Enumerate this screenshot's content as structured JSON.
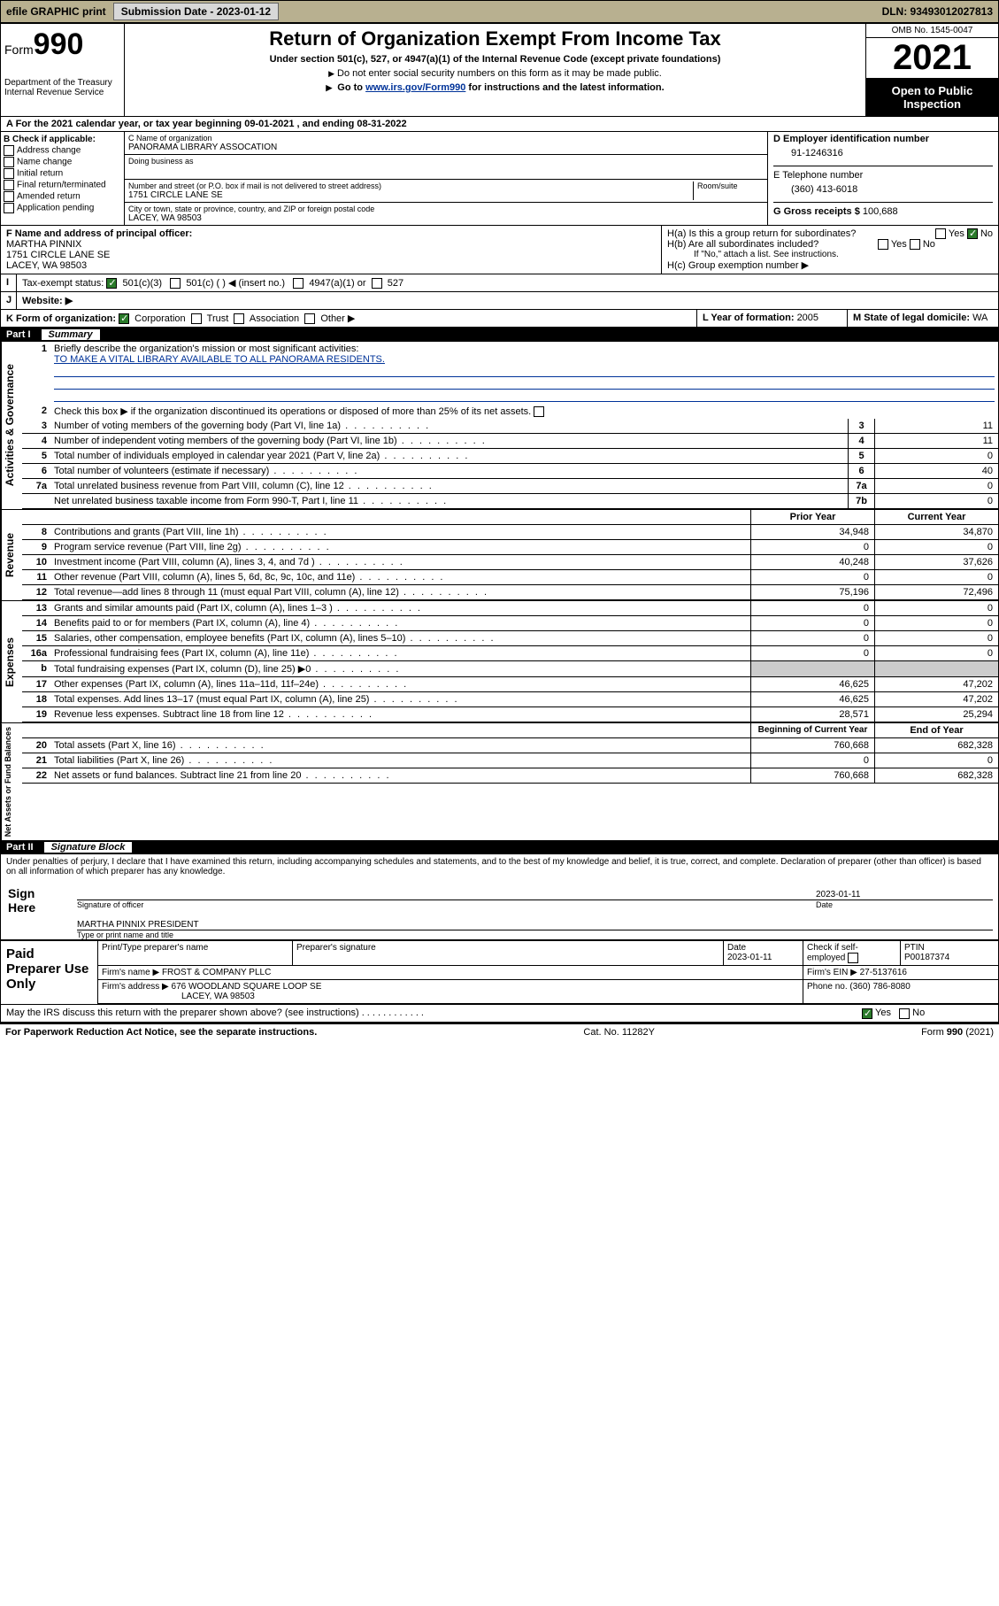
{
  "topbar": {
    "efile": "efile GRAPHIC print",
    "sub_label": "Submission Date - 2023-01-12",
    "dln": "DLN: 93493012027813"
  },
  "header": {
    "form_label": "Form",
    "form_num": "990",
    "dept": "Department of the Treasury",
    "irs": "Internal Revenue Service",
    "title": "Return of Organization Exempt From Income Tax",
    "subtitle": "Under section 501(c), 527, or 4947(a)(1) of the Internal Revenue Code (except private foundations)",
    "note1": "Do not enter social security numbers on this form as it may be made public.",
    "note2_pre": "Go to ",
    "note2_link": "www.irs.gov/Form990",
    "note2_post": " for instructions and the latest information.",
    "omb": "OMB No. 1545-0047",
    "year": "2021",
    "open": "Open to Public Inspection"
  },
  "period": {
    "label_a": "A For the 2021 calendar year, or tax year beginning ",
    "begin": "09-01-2021",
    "mid": " , and ending ",
    "end": "08-31-2022"
  },
  "boxB": {
    "title": "B Check if applicable:",
    "opts": [
      "Address change",
      "Name change",
      "Initial return",
      "Final return/terminated",
      "Amended return",
      "Application pending"
    ]
  },
  "boxC": {
    "name_lbl": "C Name of organization",
    "name": "PANORAMA LIBRARY ASSOCATION",
    "dba_lbl": "Doing business as",
    "street_lbl": "Number and street (or P.O. box if mail is not delivered to street address)",
    "room_lbl": "Room/suite",
    "street": "1751 CIRCLE LANE SE",
    "city_lbl": "City or town, state or province, country, and ZIP or foreign postal code",
    "city": "LACEY, WA  98503"
  },
  "boxD": {
    "lbl": "D Employer identification number",
    "val": "91-1246316"
  },
  "boxE": {
    "lbl": "E Telephone number",
    "val": "(360) 413-6018"
  },
  "boxG": {
    "lbl": "G Gross receipts $",
    "val": "100,688"
  },
  "boxF": {
    "lbl": "F Name and address of principal officer:",
    "name": "MARTHA PINNIX",
    "addr1": "1751 CIRCLE LANE SE",
    "addr2": "LACEY, WA  98503"
  },
  "boxH": {
    "a": "H(a)  Is this a group return for subordinates?",
    "b": "H(b)  Are all subordinates included?",
    "bnote": "If \"No,\" attach a list. See instructions.",
    "c": "H(c)  Group exemption number ▶",
    "yes": "Yes",
    "no": "No"
  },
  "boxI": {
    "lbl": "Tax-exempt status:",
    "o1": "501(c)(3)",
    "o2": "501(c) (  ) ◀ (insert no.)",
    "o3": "4947(a)(1) or",
    "o4": "527"
  },
  "boxJ": {
    "lbl": "Website: ▶"
  },
  "boxK": {
    "lbl": "K Form of organization:",
    "o1": "Corporation",
    "o2": "Trust",
    "o3": "Association",
    "o4": "Other ▶"
  },
  "boxL": {
    "lbl": "L Year of formation: ",
    "val": "2005"
  },
  "boxM": {
    "lbl": "M State of legal domicile: ",
    "val": "WA"
  },
  "partI": {
    "num": "Part I",
    "title": "Summary",
    "l1": "Briefly describe the organization's mission or most significant activities:",
    "mission": "TO MAKE A VITAL LIBRARY AVAILABLE TO ALL PANORAMA RESIDENTS.",
    "l2": "Check this box ▶        if the organization discontinued its operations or disposed of more than 25% of its net assets.",
    "lines_gov": [
      {
        "n": "3",
        "t": "Number of voting members of the governing body (Part VI, line 1a)",
        "b": "3",
        "v": "11"
      },
      {
        "n": "4",
        "t": "Number of independent voting members of the governing body (Part VI, line 1b)",
        "b": "4",
        "v": "11"
      },
      {
        "n": "5",
        "t": "Total number of individuals employed in calendar year 2021 (Part V, line 2a)",
        "b": "5",
        "v": "0"
      },
      {
        "n": "6",
        "t": "Total number of volunteers (estimate if necessary)",
        "b": "6",
        "v": "40"
      },
      {
        "n": "7a",
        "t": "Total unrelated business revenue from Part VIII, column (C), line 12",
        "b": "7a",
        "v": "0"
      },
      {
        "n": "",
        "t": "Net unrelated business taxable income from Form 990-T, Part I, line 11",
        "b": "7b",
        "v": "0"
      }
    ],
    "hdr_prior": "Prior Year",
    "hdr_curr": "Current Year",
    "lines_rev": [
      {
        "n": "8",
        "t": "Contributions and grants (Part VIII, line 1h)",
        "p": "34,948",
        "c": "34,870"
      },
      {
        "n": "9",
        "t": "Program service revenue (Part VIII, line 2g)",
        "p": "0",
        "c": "0"
      },
      {
        "n": "10",
        "t": "Investment income (Part VIII, column (A), lines 3, 4, and 7d )",
        "p": "40,248",
        "c": "37,626"
      },
      {
        "n": "11",
        "t": "Other revenue (Part VIII, column (A), lines 5, 6d, 8c, 9c, 10c, and 11e)",
        "p": "0",
        "c": "0"
      },
      {
        "n": "12",
        "t": "Total revenue—add lines 8 through 11 (must equal Part VIII, column (A), line 12)",
        "p": "75,196",
        "c": "72,496"
      }
    ],
    "lines_exp": [
      {
        "n": "13",
        "t": "Grants and similar amounts paid (Part IX, column (A), lines 1–3 )",
        "p": "0",
        "c": "0"
      },
      {
        "n": "14",
        "t": "Benefits paid to or for members (Part IX, column (A), line 4)",
        "p": "0",
        "c": "0"
      },
      {
        "n": "15",
        "t": "Salaries, other compensation, employee benefits (Part IX, column (A), lines 5–10)",
        "p": "0",
        "c": "0"
      },
      {
        "n": "16a",
        "t": "Professional fundraising fees (Part IX, column (A), line 11e)",
        "p": "0",
        "c": "0"
      },
      {
        "n": "b",
        "t": "Total fundraising expenses (Part IX, column (D), line 25) ▶0",
        "p": "",
        "c": "",
        "grey": true
      },
      {
        "n": "17",
        "t": "Other expenses (Part IX, column (A), lines 11a–11d, 11f–24e)",
        "p": "46,625",
        "c": "47,202"
      },
      {
        "n": "18",
        "t": "Total expenses. Add lines 13–17 (must equal Part IX, column (A), line 25)",
        "p": "46,625",
        "c": "47,202"
      },
      {
        "n": "19",
        "t": "Revenue less expenses. Subtract line 18 from line 12",
        "p": "28,571",
        "c": "25,294"
      }
    ],
    "hdr_beg": "Beginning of Current Year",
    "hdr_end": "End of Year",
    "lines_nab": [
      {
        "n": "20",
        "t": "Total assets (Part X, line 16)",
        "p": "760,668",
        "c": "682,328"
      },
      {
        "n": "21",
        "t": "Total liabilities (Part X, line 26)",
        "p": "0",
        "c": "0"
      },
      {
        "n": "22",
        "t": "Net assets or fund balances. Subtract line 21 from line 20",
        "p": "760,668",
        "c": "682,328"
      }
    ],
    "side_gov": "Activities & Governance",
    "side_rev": "Revenue",
    "side_exp": "Expenses",
    "side_nab": "Net Assets or Fund Balances"
  },
  "partII": {
    "num": "Part II",
    "title": "Signature Block",
    "decl": "Under penalties of perjury, I declare that I have examined this return, including accompanying schedules and statements, and to the best of my knowledge and belief, it is true, correct, and complete. Declaration of preparer (other than officer) is based on all information of which preparer has any knowledge.",
    "sign_here": "Sign Here",
    "sig_officer": "Signature of officer",
    "date_lbl": "Date",
    "sig_date": "2023-01-11",
    "officer_name": "MARTHA PINNIX  PRESIDENT",
    "type_name": "Type or print name and title",
    "paid": "Paid Preparer Use Only",
    "pt_name_lbl": "Print/Type preparer's name",
    "pt_sig_lbl": "Preparer's signature",
    "pt_date_lbl": "Date",
    "pt_date": "2023-01-11",
    "pt_check": "Check        if self-employed",
    "ptin_lbl": "PTIN",
    "ptin": "P00187374",
    "firm_name_lbl": "Firm's name    ▶",
    "firm_name": "FROST & COMPANY PLLC",
    "firm_ein_lbl": "Firm's EIN ▶",
    "firm_ein": "27-5137616",
    "firm_addr_lbl": "Firm's address ▶",
    "firm_addr": "676 WOODLAND SQUARE LOOP SE",
    "firm_city": "LACEY, WA  98503",
    "phone_lbl": "Phone no. ",
    "phone": "(360) 786-8080",
    "discuss": "May the IRS discuss this return with the preparer shown above? (see instructions)",
    "yes": "Yes",
    "no": "No"
  },
  "footer": {
    "pra": "For Paperwork Reduction Act Notice, see the separate instructions.",
    "cat": "Cat. No. 11282Y",
    "form": "Form 990 (2021)"
  }
}
